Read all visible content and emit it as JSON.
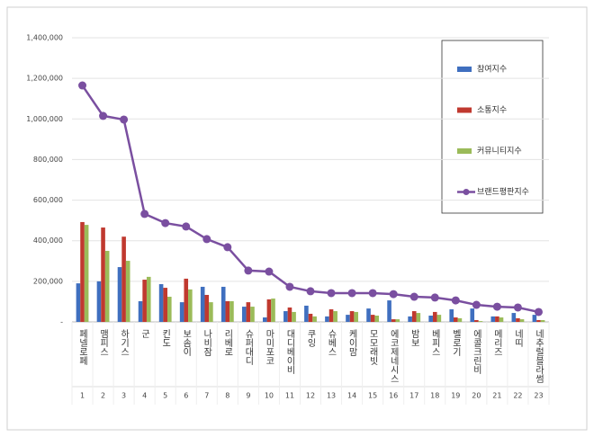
{
  "chart_data": {
    "type": "bar_line",
    "categories": [
      "페넬로페",
      "맴피스",
      "하기스",
      "군",
      "킨도",
      "보솜이",
      "나비잠",
      "리베로",
      "슈퍼대디",
      "마미포코",
      "대디베이비",
      "쿠잉",
      "슈베스",
      "케이맘",
      "모모래빗",
      "에코제네시스",
      "밤보",
      "베피스",
      "벨로기",
      "에콜크린비",
      "메리즈",
      "네띠",
      "네추럴블라썸"
    ],
    "ranks": [
      1,
      2,
      3,
      4,
      5,
      6,
      7,
      8,
      9,
      10,
      11,
      12,
      13,
      14,
      15,
      16,
      17,
      18,
      19,
      20,
      21,
      22,
      23
    ],
    "series": [
      {
        "name": "참여지수",
        "type": "bar",
        "color": "#3f6fbf",
        "values": [
          190000,
          200000,
          270000,
          102000,
          186000,
          97000,
          173000,
          173000,
          75000,
          22000,
          53000,
          80000,
          27000,
          35000,
          66000,
          106000,
          27000,
          31000,
          62000,
          66000,
          27000,
          44000,
          35000
        ]
      },
      {
        "name": "소통지수",
        "type": "bar",
        "color": "#c0392f",
        "values": [
          492000,
          465000,
          420000,
          208000,
          168000,
          213000,
          133000,
          102000,
          97000,
          111000,
          71000,
          40000,
          62000,
          53000,
          35000,
          13000,
          53000,
          49000,
          22000,
          9000,
          27000,
          18000,
          9000
        ]
      },
      {
        "name": "커뮤니티지수",
        "type": "bar",
        "color": "#9bbb59",
        "values": [
          478000,
          350000,
          301000,
          222000,
          124000,
          160000,
          97000,
          102000,
          75000,
          115000,
          49000,
          27000,
          53000,
          49000,
          31000,
          13000,
          44000,
          35000,
          18000,
          4000,
          22000,
          13000,
          9000
        ]
      },
      {
        "name": "브랜드평판지수",
        "type": "line",
        "color": "#7a4fa0",
        "values": [
          1165000,
          1015000,
          997000,
          532000,
          487000,
          470000,
          408000,
          368000,
          253000,
          248000,
          173000,
          151000,
          142000,
          142000,
          142000,
          137000,
          124000,
          120000,
          106000,
          84000,
          75000,
          71000,
          49000
        ]
      }
    ],
    "ylim": [
      0,
      1400000
    ],
    "yticks": [
      {
        "value": 0,
        "label": "-"
      },
      {
        "value": 200000,
        "label": "200,000"
      },
      {
        "value": 400000,
        "label": "400,000"
      },
      {
        "value": 600000,
        "label": "600,000"
      },
      {
        "value": 800000,
        "label": "800,000"
      },
      {
        "value": 1000000,
        "label": "1,000,000"
      },
      {
        "value": 1200000,
        "label": "1,200,000"
      },
      {
        "value": 1400000,
        "label": "1,400,000"
      }
    ],
    "grid": true,
    "legend": "right"
  }
}
